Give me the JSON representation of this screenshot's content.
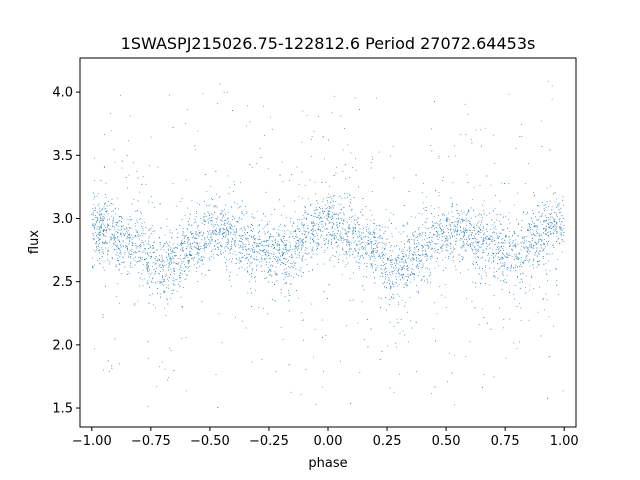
{
  "chart_data": {
    "type": "scatter",
    "title": "1SWASPJ215026.75-122812.6 Period 27072.64453s",
    "xlabel": "phase",
    "ylabel": "flux",
    "xlim": [
      -1.05,
      1.05
    ],
    "ylim": [
      1.35,
      4.27
    ],
    "x_ticks": [
      -1.0,
      -0.75,
      -0.5,
      -0.25,
      0.0,
      0.25,
      0.5,
      0.75,
      1.0
    ],
    "x_tick_labels": [
      "−1.00",
      "−0.75",
      "−0.50",
      "−0.25",
      "0.00",
      "0.25",
      "0.50",
      "0.75",
      "1.00"
    ],
    "y_ticks": [
      1.5,
      2.0,
      2.5,
      3.0,
      3.5,
      4.0
    ],
    "y_tick_labels": [
      "1.5",
      "2.0",
      "2.5",
      "3.0",
      "3.5",
      "4.0"
    ],
    "grid": false,
    "marker_color": "#1f77b4",
    "phased_light_curve": {
      "phase": [
        -1.0,
        -0.95,
        -0.9,
        -0.85,
        -0.8,
        -0.75,
        -0.7,
        -0.65,
        -0.6,
        -0.55,
        -0.5,
        -0.45,
        -0.4,
        -0.35,
        -0.3,
        -0.25,
        -0.2,
        -0.15,
        -0.1,
        -0.05,
        0.0,
        0.05,
        0.1,
        0.15,
        0.2,
        0.25,
        0.3,
        0.35,
        0.4,
        0.45,
        0.5,
        0.55,
        0.6,
        0.65,
        0.7,
        0.75,
        0.8,
        0.85,
        0.9,
        0.95,
        1.0
      ],
      "median_flux": [
        2.93,
        2.92,
        2.88,
        2.82,
        2.77,
        2.71,
        2.62,
        2.66,
        2.74,
        2.81,
        2.87,
        2.88,
        2.86,
        2.82,
        2.77,
        2.74,
        2.73,
        2.78,
        2.84,
        2.92,
        2.95,
        2.92,
        2.86,
        2.8,
        2.74,
        2.68,
        2.6,
        2.68,
        2.76,
        2.82,
        2.87,
        2.89,
        2.87,
        2.82,
        2.77,
        2.74,
        2.72,
        2.78,
        2.85,
        2.91,
        2.93
      ],
      "core_scatter": 0.13,
      "outlier_range": [
        1.5,
        4.15
      ]
    }
  }
}
